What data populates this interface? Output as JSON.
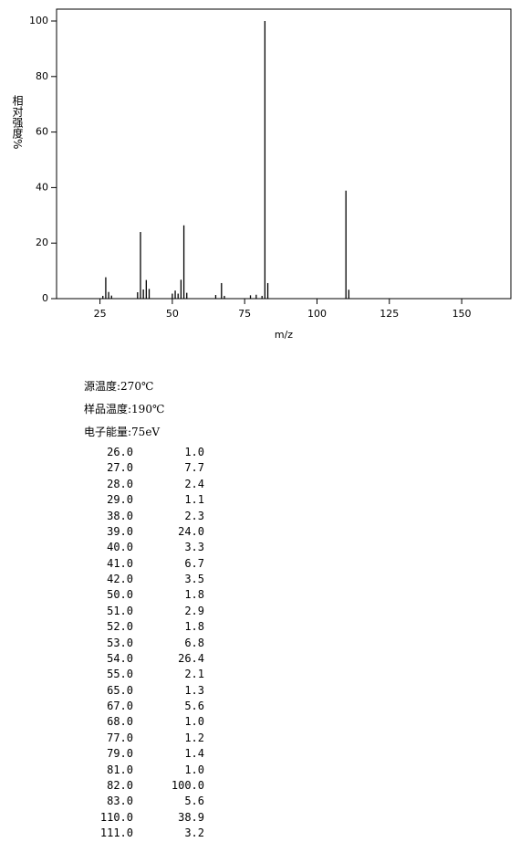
{
  "chart_data": {
    "type": "bar",
    "ylabel": "相对强度%",
    "xlabel": "m/z",
    "x": [
      26,
      27,
      28,
      29,
      38,
      39,
      40,
      41,
      42,
      50,
      51,
      52,
      53,
      54,
      55,
      65,
      67,
      68,
      77,
      79,
      81,
      82,
      83,
      110,
      111
    ],
    "x_labels": [
      "26.0",
      "27.0",
      "28.0",
      "29.0",
      "38.0",
      "39.0",
      "40.0",
      "41.0",
      "42.0",
      "50.0",
      "51.0",
      "52.0",
      "53.0",
      "54.0",
      "55.0",
      "65.0",
      "67.0",
      "68.0",
      "77.0",
      "79.0",
      "81.0",
      "82.0",
      "83.0",
      "110.0",
      "111.0"
    ],
    "values": [
      1.0,
      7.7,
      2.4,
      1.1,
      2.3,
      24.0,
      3.3,
      6.7,
      3.5,
      1.8,
      2.9,
      1.8,
      6.8,
      26.4,
      2.1,
      1.3,
      5.6,
      1.0,
      1.2,
      1.4,
      1.0,
      100.0,
      5.6,
      38.9,
      3.2
    ],
    "value_labels": [
      "1.0",
      "7.7",
      "2.4",
      "1.1",
      "2.3",
      "24.0",
      "3.3",
      "6.7",
      "3.5",
      "1.8",
      "2.9",
      "1.8",
      "6.8",
      "26.4",
      "2.1",
      "1.3",
      "5.6",
      "1.0",
      "1.2",
      "1.4",
      "1.0",
      "100.0",
      "5.6",
      "38.9",
      "3.2"
    ],
    "color": "#000000",
    "xlim": [
      10,
      167
    ],
    "xticks": [
      25,
      50,
      75,
      100,
      125,
      150
    ],
    "ylim": [
      0,
      100
    ],
    "yticks": [
      0,
      20,
      40,
      60,
      80,
      100
    ]
  },
  "conditions": [
    "源温度:270℃",
    "样品温度:190℃",
    "电子能量:75eV"
  ]
}
